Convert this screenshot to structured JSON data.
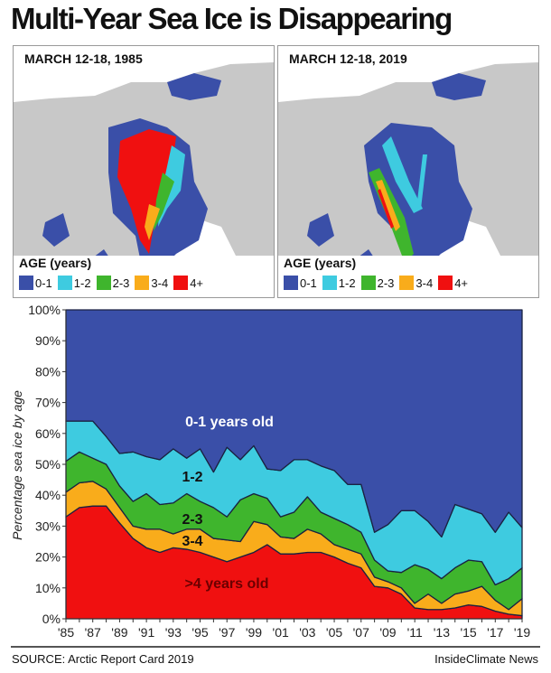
{
  "title": "Multi-Year Sea Ice is Disappearing",
  "maps": [
    {
      "date": "MARCH 12-18, 1985"
    },
    {
      "date": "MARCH 12-18, 2019"
    }
  ],
  "legend": {
    "title": "AGE (years)",
    "items": [
      {
        "label": "0-1",
        "color": "#3a4fa8"
      },
      {
        "label": "1-2",
        "color": "#3ecbe0"
      },
      {
        "label": "2-3",
        "color": "#3fb52d"
      },
      {
        "label": "3-4",
        "color": "#f9ac1b"
      },
      {
        "label": "4+",
        "color": "#f01010"
      }
    ]
  },
  "chart_data": {
    "type": "area",
    "stacked": true,
    "ylabel": "Percentage sea ice by age",
    "ylim": [
      0,
      100
    ],
    "yticks": [
      "0%",
      "10%",
      "20%",
      "30%",
      "40%",
      "50%",
      "60%",
      "70%",
      "80%",
      "90%",
      "100%"
    ],
    "x": [
      1985,
      1986,
      1987,
      1988,
      1989,
      1990,
      1991,
      1992,
      1993,
      1994,
      1995,
      1996,
      1997,
      1998,
      1999,
      2000,
      2001,
      2002,
      2003,
      2004,
      2005,
      2006,
      2007,
      2008,
      2009,
      2010,
      2011,
      2012,
      2013,
      2014,
      2015,
      2016,
      2017,
      2018,
      2019
    ],
    "xticks": [
      "'85",
      "'87",
      "'89",
      "'91",
      "'93",
      "'95",
      "'97",
      "'99",
      "'01",
      "'03",
      "'05",
      "'07",
      "'09",
      "'11",
      "'13",
      "'15",
      "'17",
      "'19"
    ],
    "series": [
      {
        "name": ">4 years old",
        "color": "#f01010",
        "values": [
          33,
          36,
          36.5,
          36.5,
          31,
          26,
          23,
          21.5,
          23,
          22.5,
          21.5,
          20,
          18.5,
          20,
          21.5,
          24,
          21,
          21,
          21.5,
          21.5,
          20,
          18,
          16.5,
          10.5,
          10,
          8,
          3.5,
          3,
          3,
          3.5,
          4.5,
          4,
          2.5,
          1.5,
          1
        ]
      },
      {
        "name": "3-4",
        "color": "#f9ac1b",
        "values": [
          8,
          8,
          8,
          5.5,
          5,
          4,
          6,
          7.5,
          4.5,
          6.5,
          7.5,
          6,
          7,
          5,
          10,
          6.5,
          5.5,
          5,
          7.5,
          6,
          4,
          4.5,
          4.5,
          3,
          2,
          2,
          1.5,
          5,
          2,
          4.5,
          4.5,
          6.5,
          3.5,
          1.5,
          5.5
        ]
      },
      {
        "name": "2-3",
        "color": "#3fb52d",
        "values": [
          10,
          10,
          7.5,
          8,
          7,
          8,
          11.5,
          8,
          10,
          11.5,
          9,
          10,
          7.5,
          13.5,
          9,
          8.5,
          6.5,
          8.5,
          10.5,
          7,
          8.5,
          8,
          7,
          5.5,
          3.5,
          5,
          12.5,
          8,
          8,
          8.5,
          10,
          8,
          5,
          10,
          10
        ]
      },
      {
        "name": "1-2",
        "color": "#3ecbe0",
        "values": [
          13,
          10,
          12,
          9,
          10.5,
          16,
          12,
          14.5,
          17.5,
          11.5,
          17,
          11.5,
          22.5,
          13,
          15.5,
          9.5,
          15,
          17,
          12,
          15,
          15.5,
          13,
          15.5,
          9,
          15,
          20,
          17.5,
          15.5,
          13.5,
          20.5,
          16.5,
          15.5,
          17,
          21.5,
          13
        ]
      },
      {
        "name": "0-1 years old",
        "color": "#3a4fa8",
        "values": [
          36,
          36,
          36,
          41,
          46.5,
          46,
          47.5,
          48.5,
          45,
          48,
          45,
          52.5,
          44.5,
          48.5,
          44,
          51.5,
          52,
          48.5,
          48.5,
          50.5,
          52,
          56.5,
          56.5,
          72,
          69.5,
          65,
          65,
          68.5,
          73.5,
          63,
          64.5,
          66,
          72,
          65.5,
          70.5
        ]
      }
    ]
  },
  "footer": {
    "source": "SOURCE: Arctic Report Card 2019",
    "credit": "InsideClimate News"
  }
}
